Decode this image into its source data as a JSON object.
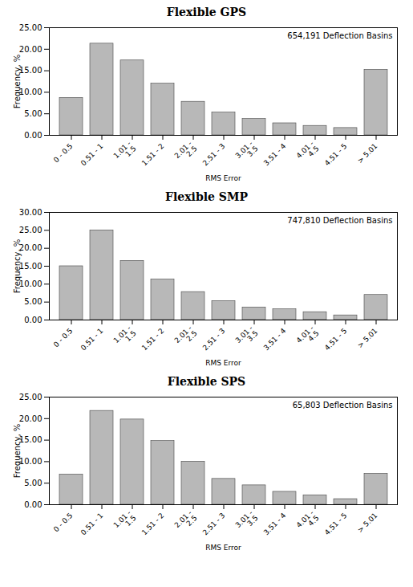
{
  "chart_data": [
    {
      "type": "bar",
      "title": "Flexible GPS",
      "subtitle": "654,191 Deflection Basins",
      "categories": [
        "0 - 0.5",
        "0.51 - 1",
        "1.01 -\n1.5",
        "1.51 - 2",
        "2.01 -\n2.5",
        "2.51 - 3",
        "3.01 -\n3.5",
        "3.51 - 4",
        "4.01 -\n4.5",
        "4.51 - 5",
        "> 5.01"
      ],
      "values": [
        8.7,
        21.3,
        17.4,
        12.0,
        7.8,
        5.3,
        3.8,
        2.8,
        2.2,
        1.7,
        15.2
      ],
      "color": "#b8b8b8",
      "xlabel": "RMS Error",
      "ylabel": "Frequency, %",
      "ylim": [
        0,
        25
      ],
      "yticks": [
        {
          "value": 0,
          "label": "0.00"
        },
        {
          "value": 5,
          "label": "5.00"
        },
        {
          "value": 10,
          "label": "10.00"
        },
        {
          "value": 15,
          "label": "15.00"
        },
        {
          "value": 20,
          "label": "20.00"
        },
        {
          "value": 25,
          "label": "25.00"
        }
      ],
      "grid": false
    },
    {
      "type": "bar",
      "title": "Flexible SMP",
      "subtitle": "747,810 Deflection Basins",
      "categories": [
        "0 - 0.5",
        "0.51 - 1",
        "1.01 -\n1.5",
        "1.51 - 2",
        "2.01 -\n2.5",
        "2.51 - 3",
        "3.01 -\n3.5",
        "3.51 - 4",
        "4.01 -\n4.5",
        "4.51 - 5",
        "> 5.01"
      ],
      "values": [
        15.0,
        25.0,
        16.5,
        11.3,
        7.8,
        5.3,
        3.5,
        3.0,
        2.2,
        1.3,
        7.0
      ],
      "color": "#b8b8b8",
      "xlabel": "RMS Error",
      "ylabel": "Frequency, %",
      "ylim": [
        0,
        30
      ],
      "yticks": [
        {
          "value": 0,
          "label": "0.00"
        },
        {
          "value": 5,
          "label": "5.00"
        },
        {
          "value": 10,
          "label": "10.00"
        },
        {
          "value": 15,
          "label": "15.00"
        },
        {
          "value": 20,
          "label": "20.00"
        },
        {
          "value": 25,
          "label": "25.00"
        },
        {
          "value": 30,
          "label": "30.00"
        }
      ],
      "grid": false
    },
    {
      "type": "bar",
      "title": "Flexible SPS",
      "subtitle": "65,803 Deflection Basins",
      "categories": [
        "0 - 0.5",
        "0.51 - 1",
        "1.01 -\n1.5",
        "1.51 - 2",
        "2.01 -\n2.5",
        "2.51 - 3",
        "3.01 -\n3.5",
        "3.51 - 4",
        "4.01 -\n4.5",
        "4.51 - 5",
        "> 5.01"
      ],
      "values": [
        7.0,
        21.8,
        19.8,
        14.8,
        10.0,
        6.0,
        4.5,
        3.0,
        2.2,
        1.3,
        7.2
      ],
      "color": "#b8b8b8",
      "xlabel": "RMS Error",
      "ylabel": "Frequency, %",
      "ylim": [
        0,
        25
      ],
      "yticks": [
        {
          "value": 0,
          "label": "0.00"
        },
        {
          "value": 5,
          "label": "5.00"
        },
        {
          "value": 10,
          "label": "10.00"
        },
        {
          "value": 15,
          "label": "15.00"
        },
        {
          "value": 20,
          "label": "20.00"
        },
        {
          "value": 25,
          "label": "25.00"
        }
      ],
      "grid": false
    }
  ]
}
